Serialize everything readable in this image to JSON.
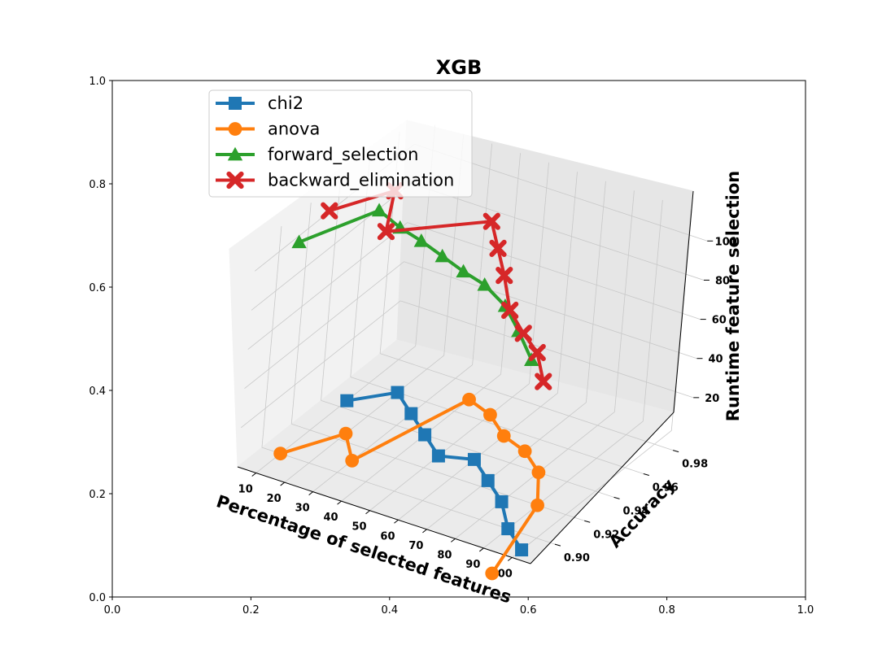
{
  "chart_data": {
    "type": "line",
    "projection": "3d",
    "title": "XGB",
    "xlabel": "Percentage of selected features",
    "ylabel": "Accuracy",
    "zlabel": "Runtime feature selection",
    "x_ticks": [
      "10",
      "20",
      "30",
      "40",
      "50",
      "60",
      "70",
      "80",
      "90",
      "100"
    ],
    "y_ticks": [
      "0.90",
      "0.92",
      "0.94",
      "0.96",
      "0.98"
    ],
    "z_ticks": [
      "20",
      "40",
      "60",
      "80",
      "100"
    ],
    "outer_axes": {
      "x_ticks": [
        "0.0",
        "0.2",
        "0.4",
        "0.6",
        "0.8",
        "1.0"
      ],
      "y_ticks": [
        "0.0",
        "0.2",
        "0.4",
        "0.6",
        "0.8",
        "1.0"
      ]
    },
    "grid": true,
    "legend_position": "upper-left",
    "series": [
      {
        "name": "chi2",
        "color": "#1f77b4",
        "marker": "square",
        "points": [
          {
            "x": 10,
            "y": 0.945,
            "z": 0
          },
          {
            "x": 20,
            "y": 0.96,
            "z": 0
          },
          {
            "x": 30,
            "y": 0.95,
            "z": 0
          },
          {
            "x": 40,
            "y": 0.94,
            "z": 0
          },
          {
            "x": 50,
            "y": 0.93,
            "z": 0
          },
          {
            "x": 60,
            "y": 0.935,
            "z": 0
          },
          {
            "x": 70,
            "y": 0.925,
            "z": 0
          },
          {
            "x": 80,
            "y": 0.915,
            "z": 0
          },
          {
            "x": 90,
            "y": 0.9,
            "z": 0
          },
          {
            "x": 100,
            "y": 0.89,
            "z": 0
          }
        ]
      },
      {
        "name": "anova",
        "color": "#ff7f0e",
        "marker": "circle",
        "points": [
          {
            "x": 10,
            "y": 0.9,
            "z": 0
          },
          {
            "x": 20,
            "y": 0.925,
            "z": 0
          },
          {
            "x": 30,
            "y": 0.91,
            "z": 0
          },
          {
            "x": 40,
            "y": 0.97,
            "z": 0
          },
          {
            "x": 50,
            "y": 0.965,
            "z": 0
          },
          {
            "x": 60,
            "y": 0.955,
            "z": 0
          },
          {
            "x": 70,
            "y": 0.95,
            "z": 0
          },
          {
            "x": 80,
            "y": 0.94,
            "z": 0
          },
          {
            "x": 90,
            "y": 0.92,
            "z": 0
          },
          {
            "x": 100,
            "y": 0.87,
            "z": 0
          }
        ]
      },
      {
        "name": "forward_selection",
        "color": "#2ca02c",
        "marker": "triangle",
        "points": [
          {
            "x": 10,
            "y": 0.9,
            "z": 108
          },
          {
            "x": 20,
            "y": 0.935,
            "z": 108
          },
          {
            "x": 30,
            "y": 0.93,
            "z": 107
          },
          {
            "x": 40,
            "y": 0.925,
            "z": 108
          },
          {
            "x": 50,
            "y": 0.92,
            "z": 108
          },
          {
            "x": 60,
            "y": 0.915,
            "z": 108
          },
          {
            "x": 70,
            "y": 0.91,
            "z": 109
          },
          {
            "x": 80,
            "y": 0.905,
            "z": 106
          },
          {
            "x": 90,
            "y": 0.895,
            "z": 104
          },
          {
            "x": 100,
            "y": 0.885,
            "z": 100
          }
        ]
      },
      {
        "name": "backward_elimination",
        "color": "#d62728",
        "marker": "x",
        "points": [
          {
            "x": 10,
            "y": 0.92,
            "z": 112
          },
          {
            "x": 20,
            "y": 0.945,
            "z": 112
          },
          {
            "x": 30,
            "y": 0.92,
            "z": 111
          },
          {
            "x": 40,
            "y": 0.975,
            "z": 88
          },
          {
            "x": 50,
            "y": 0.96,
            "z": 88
          },
          {
            "x": 60,
            "y": 0.945,
            "z": 88
          },
          {
            "x": 70,
            "y": 0.93,
            "z": 84
          },
          {
            "x": 80,
            "y": 0.92,
            "z": 83
          },
          {
            "x": 90,
            "y": 0.91,
            "z": 84
          },
          {
            "x": 100,
            "y": 0.895,
            "z": 83
          }
        ]
      }
    ]
  }
}
